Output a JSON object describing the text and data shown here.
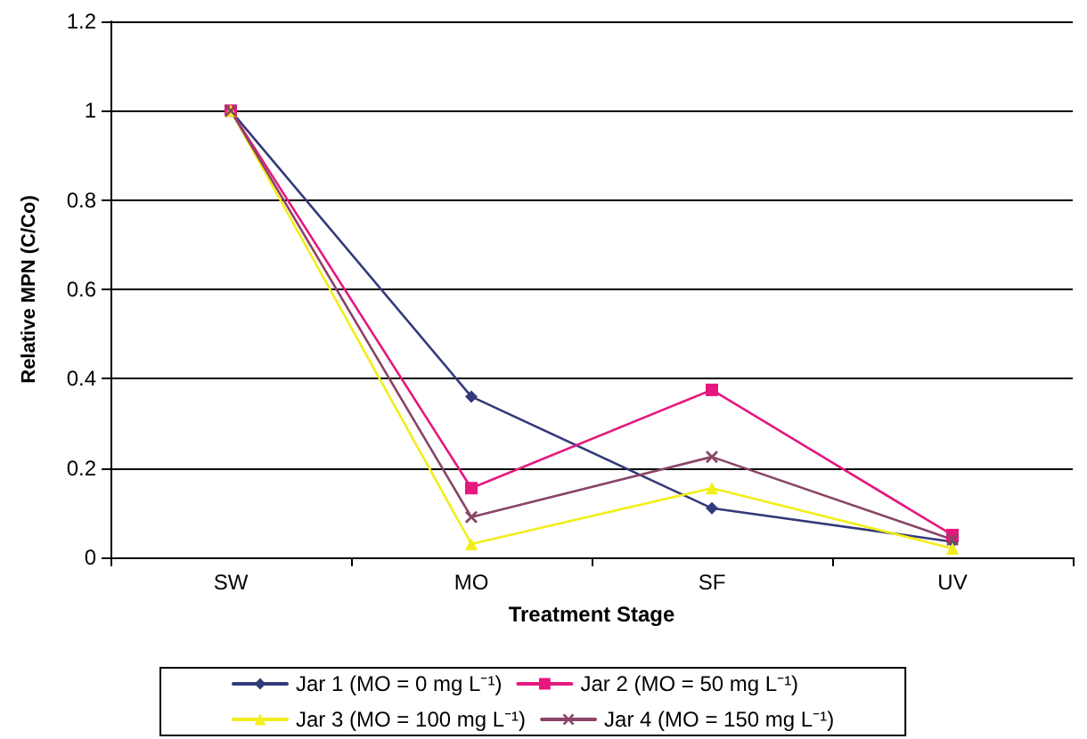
{
  "chart_data": {
    "type": "line",
    "xlabel": "Treatment Stage",
    "ylabel": "Relative MPN (C/Co)",
    "categories": [
      "SW",
      "MO",
      "SF",
      "UV"
    ],
    "series": [
      {
        "name": "Jar 1 (MO = 0 mg L⁻¹)",
        "color": "#333a7a",
        "marker": "diamond",
        "values": [
          1,
          0.36,
          0.11,
          0.035
        ]
      },
      {
        "name": "Jar 2 (MO = 50 mg L⁻¹)",
        "color": "#e6177f",
        "marker": "square",
        "values": [
          1,
          0.155,
          0.375,
          0.05
        ]
      },
      {
        "name": "Jar 3 (MO = 100 mg L⁻¹)",
        "color": "#f2ee1a",
        "marker": "triangle",
        "values": [
          1,
          0.03,
          0.155,
          0.02
        ]
      },
      {
        "name": "Jar 4 (MO = 150 mg L⁻¹)",
        "color": "#8a4466",
        "marker": "cross",
        "values": [
          1,
          0.09,
          0.225,
          0.04
        ]
      }
    ],
    "ylim": [
      0,
      1.2
    ],
    "yticks": [
      0,
      0.2,
      0.4,
      0.6,
      0.8,
      1,
      1.2
    ],
    "grid": "y",
    "legend": "bottom",
    "line_style": "solid"
  }
}
